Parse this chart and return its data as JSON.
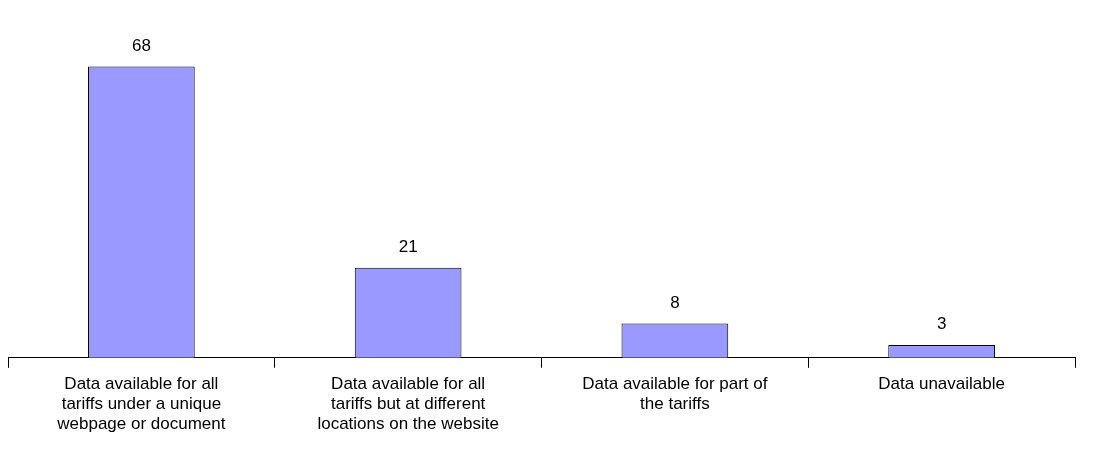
{
  "chart_data": {
    "type": "bar",
    "categories": [
      "Data available for all tariffs under a unique webpage or document",
      "Data available for all tariffs but at different locations on the website",
      "Data available for part of the tariffs",
      "Data unavailable"
    ],
    "values": [
      68,
      21,
      8,
      3
    ],
    "color": "#9999ff",
    "data_labels": true,
    "grid": false,
    "legend": false
  }
}
